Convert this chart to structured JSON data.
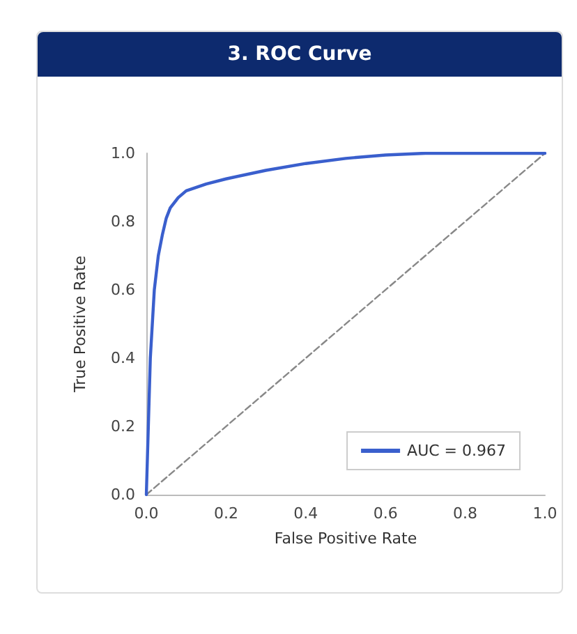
{
  "chart_data": {
    "type": "line",
    "title": "3. ROC Curve",
    "xlabel": "False Positive Rate",
    "ylabel": "True Positive Rate",
    "xlim": [
      0,
      1
    ],
    "xticks": [
      {
        "value": 0,
        "label": "0.0"
      },
      0.2,
      0.4,
      0.6,
      0.8,
      {
        "value": 1,
        "label": "1.0"
      }
    ],
    "ylim": [
      0,
      1
    ],
    "yticks": [
      {
        "value": 0,
        "label": "0.0"
      },
      0.2,
      0.4,
      0.6,
      0.8,
      {
        "value": 1,
        "label": "1.0"
      }
    ],
    "grid": false,
    "legend": "bottom right",
    "marker": "none",
    "series": [
      {
        "name": "AUC = 0.967",
        "color": "#3a5fcd",
        "line_style": "solid",
        "x": [
          0,
          0.005,
          0.01,
          0.02,
          0.03,
          0.04,
          0.05,
          0.06,
          0.08,
          0.1,
          0.15,
          0.2,
          0.3,
          0.4,
          0.5,
          0.6,
          0.7,
          0.8,
          1
        ],
        "values": [
          0,
          0.2,
          0.4,
          0.6,
          0.7,
          0.76,
          0.81,
          0.84,
          0.87,
          0.89,
          0.91,
          0.925,
          0.95,
          0.97,
          0.985,
          0.995,
          1,
          1,
          1
        ]
      },
      {
        "color": "#888888",
        "line_style": "dashed",
        "x": [
          0,
          1
        ],
        "values": [
          0,
          1
        ]
      }
    ]
  }
}
